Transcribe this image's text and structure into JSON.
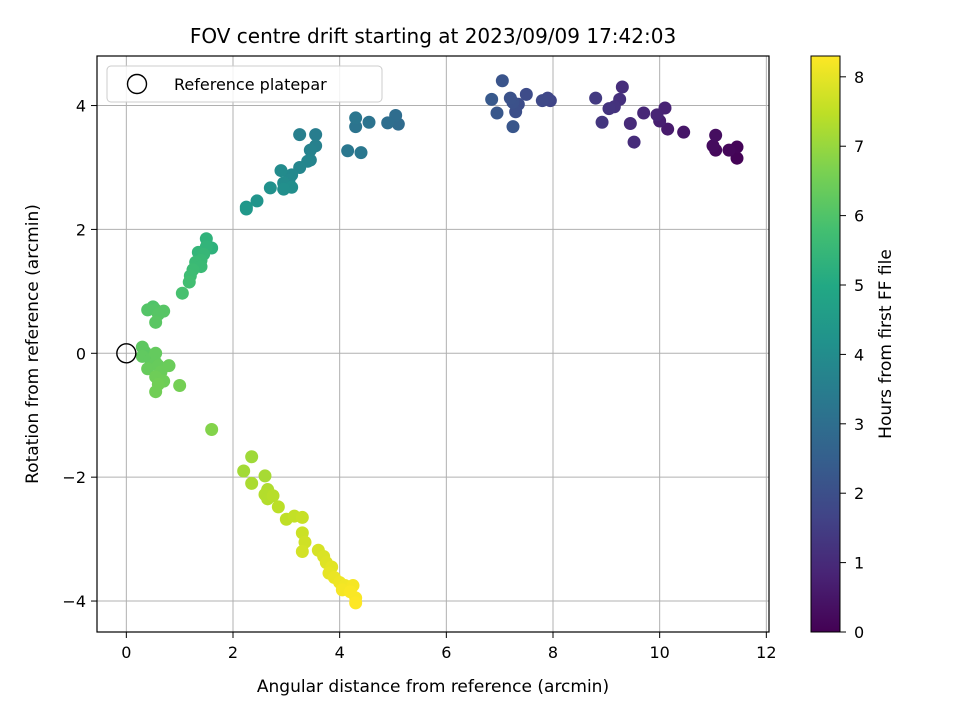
{
  "chart_data": {
    "type": "scatter",
    "title": "FOV centre drift starting at 2023/09/09 17:42:03",
    "xlabel": "Angular distance from reference (arcmin)",
    "ylabel": "Rotation from reference (arcmin)",
    "xlim": [
      -0.55,
      12.05
    ],
    "ylim": [
      -4.5,
      4.8
    ],
    "xticks": [
      "0",
      "2",
      "4",
      "6",
      "8",
      "10",
      "12"
    ],
    "yticks": [
      "−4",
      "−2",
      "0",
      "2",
      "4"
    ],
    "grid": true,
    "legend": {
      "placement": "top-left",
      "entries": [
        "Reference platepar"
      ]
    },
    "reference_point": {
      "x": 0,
      "y": 0
    },
    "colorbar": {
      "label": "Hours from first FF file",
      "colormap": "viridis",
      "range": [
        0,
        8.3
      ],
      "ticks": [
        "0",
        "1",
        "2",
        "3",
        "4",
        "5",
        "6",
        "7",
        "8"
      ]
    },
    "points": [
      {
        "x": 11.45,
        "y": 3.15,
        "c": 0.05
      },
      {
        "x": 11.45,
        "y": 3.33,
        "c": 0.1
      },
      {
        "x": 11.3,
        "y": 3.28,
        "c": 0.15
      },
      {
        "x": 11.05,
        "y": 3.28,
        "c": 0.2
      },
      {
        "x": 11.0,
        "y": 3.35,
        "c": 0.25
      },
      {
        "x": 11.05,
        "y": 3.52,
        "c": 0.3
      },
      {
        "x": 10.45,
        "y": 3.57,
        "c": 0.5
      },
      {
        "x": 10.15,
        "y": 3.62,
        "c": 0.6
      },
      {
        "x": 10.0,
        "y": 3.75,
        "c": 0.7
      },
      {
        "x": 10.1,
        "y": 3.96,
        "c": 0.8
      },
      {
        "x": 9.95,
        "y": 3.85,
        "c": 0.85
      },
      {
        "x": 9.7,
        "y": 3.88,
        "c": 0.9
      },
      {
        "x": 9.45,
        "y": 3.71,
        "c": 1.0
      },
      {
        "x": 9.52,
        "y": 3.41,
        "c": 1.05
      },
      {
        "x": 9.3,
        "y": 4.3,
        "c": 1.1
      },
      {
        "x": 9.25,
        "y": 4.1,
        "c": 1.15
      },
      {
        "x": 9.15,
        "y": 3.98,
        "c": 1.2
      },
      {
        "x": 9.05,
        "y": 3.95,
        "c": 1.25
      },
      {
        "x": 8.92,
        "y": 3.73,
        "c": 1.3
      },
      {
        "x": 8.8,
        "y": 4.12,
        "c": 1.4
      },
      {
        "x": 7.95,
        "y": 4.08,
        "c": 1.7
      },
      {
        "x": 7.9,
        "y": 4.12,
        "c": 1.75
      },
      {
        "x": 7.8,
        "y": 4.08,
        "c": 1.8
      },
      {
        "x": 7.5,
        "y": 4.18,
        "c": 1.9
      },
      {
        "x": 7.35,
        "y": 4.02,
        "c": 1.95
      },
      {
        "x": 7.3,
        "y": 3.9,
        "c": 2.0
      },
      {
        "x": 7.25,
        "y": 4.05,
        "c": 2.05
      },
      {
        "x": 7.2,
        "y": 4.12,
        "c": 2.1
      },
      {
        "x": 7.05,
        "y": 4.4,
        "c": 2.15
      },
      {
        "x": 7.25,
        "y": 3.66,
        "c": 2.2
      },
      {
        "x": 6.95,
        "y": 3.88,
        "c": 2.25
      },
      {
        "x": 6.85,
        "y": 4.1,
        "c": 2.3
      },
      {
        "x": 5.1,
        "y": 3.7,
        "c": 2.9
      },
      {
        "x": 5.05,
        "y": 3.84,
        "c": 2.95
      },
      {
        "x": 4.9,
        "y": 3.72,
        "c": 3.0
      },
      {
        "x": 4.55,
        "y": 3.73,
        "c": 3.15
      },
      {
        "x": 4.3,
        "y": 3.66,
        "c": 3.2
      },
      {
        "x": 4.3,
        "y": 3.8,
        "c": 3.25
      },
      {
        "x": 4.15,
        "y": 3.27,
        "c": 3.3
      },
      {
        "x": 4.4,
        "y": 3.24,
        "c": 3.3
      },
      {
        "x": 3.55,
        "y": 3.53,
        "c": 3.5
      },
      {
        "x": 3.25,
        "y": 3.53,
        "c": 3.55
      },
      {
        "x": 3.55,
        "y": 3.35,
        "c": 3.6
      },
      {
        "x": 3.45,
        "y": 3.28,
        "c": 3.65
      },
      {
        "x": 3.45,
        "y": 3.12,
        "c": 3.7
      },
      {
        "x": 3.4,
        "y": 3.1,
        "c": 3.75
      },
      {
        "x": 3.25,
        "y": 3.0,
        "c": 3.8
      },
      {
        "x": 3.1,
        "y": 2.88,
        "c": 3.85
      },
      {
        "x": 3.05,
        "y": 2.8,
        "c": 3.9
      },
      {
        "x": 2.9,
        "y": 2.95,
        "c": 3.95
      },
      {
        "x": 2.95,
        "y": 2.75,
        "c": 4.0
      },
      {
        "x": 3.1,
        "y": 2.68,
        "c": 4.05
      },
      {
        "x": 2.95,
        "y": 2.65,
        "c": 4.1
      },
      {
        "x": 2.7,
        "y": 2.67,
        "c": 4.15
      },
      {
        "x": 2.45,
        "y": 2.46,
        "c": 4.25
      },
      {
        "x": 2.25,
        "y": 2.36,
        "c": 4.35
      },
      {
        "x": 2.25,
        "y": 2.33,
        "c": 4.4
      },
      {
        "x": 1.6,
        "y": 1.7,
        "c": 5.3
      },
      {
        "x": 1.5,
        "y": 1.85,
        "c": 5.35
      },
      {
        "x": 1.5,
        "y": 1.72,
        "c": 5.4
      },
      {
        "x": 1.35,
        "y": 1.63,
        "c": 5.45
      },
      {
        "x": 1.45,
        "y": 1.6,
        "c": 5.5
      },
      {
        "x": 1.4,
        "y": 1.5,
        "c": 5.55
      },
      {
        "x": 1.3,
        "y": 1.47,
        "c": 5.6
      },
      {
        "x": 1.4,
        "y": 1.4,
        "c": 5.6
      },
      {
        "x": 1.25,
        "y": 1.35,
        "c": 5.65
      },
      {
        "x": 1.2,
        "y": 1.25,
        "c": 5.7
      },
      {
        "x": 1.18,
        "y": 1.15,
        "c": 5.75
      },
      {
        "x": 1.05,
        "y": 0.97,
        "c": 5.85
      },
      {
        "x": 0.5,
        "y": 0.75,
        "c": 6.0
      },
      {
        "x": 0.4,
        "y": 0.7,
        "c": 6.05
      },
      {
        "x": 0.55,
        "y": 0.7,
        "c": 6.05
      },
      {
        "x": 0.7,
        "y": 0.68,
        "c": 6.1
      },
      {
        "x": 0.6,
        "y": 0.63,
        "c": 6.1
      },
      {
        "x": 0.55,
        "y": 0.5,
        "c": 6.15
      },
      {
        "x": 0.3,
        "y": 0.1,
        "c": 6.2
      },
      {
        "x": 0.35,
        "y": 0.02,
        "c": 6.2
      },
      {
        "x": 0.3,
        "y": -0.05,
        "c": 6.25
      },
      {
        "x": 0.45,
        "y": -0.1,
        "c": 6.25
      },
      {
        "x": 0.55,
        "y": 0.0,
        "c": 6.3
      },
      {
        "x": 0.55,
        "y": -0.15,
        "c": 6.3
      },
      {
        "x": 0.4,
        "y": -0.25,
        "c": 6.35
      },
      {
        "x": 0.6,
        "y": -0.2,
        "c": 6.35
      },
      {
        "x": 0.8,
        "y": -0.2,
        "c": 6.4
      },
      {
        "x": 0.65,
        "y": -0.3,
        "c": 6.4
      },
      {
        "x": 0.55,
        "y": -0.38,
        "c": 6.45
      },
      {
        "x": 0.7,
        "y": -0.45,
        "c": 6.45
      },
      {
        "x": 0.6,
        "y": -0.5,
        "c": 6.5
      },
      {
        "x": 0.55,
        "y": -0.62,
        "c": 6.5
      },
      {
        "x": 1.0,
        "y": -0.52,
        "c": 6.55
      },
      {
        "x": 1.6,
        "y": -1.23,
        "c": 6.75
      },
      {
        "x": 2.35,
        "y": -1.67,
        "c": 7.1
      },
      {
        "x": 2.2,
        "y": -1.9,
        "c": 7.15
      },
      {
        "x": 2.6,
        "y": -1.98,
        "c": 7.2
      },
      {
        "x": 2.35,
        "y": -2.1,
        "c": 7.25
      },
      {
        "x": 2.65,
        "y": -2.2,
        "c": 7.3
      },
      {
        "x": 2.6,
        "y": -2.28,
        "c": 7.35
      },
      {
        "x": 2.65,
        "y": -2.35,
        "c": 7.35
      },
      {
        "x": 2.75,
        "y": -2.3,
        "c": 7.4
      },
      {
        "x": 2.85,
        "y": -2.48,
        "c": 7.45
      },
      {
        "x": 3.0,
        "y": -2.68,
        "c": 7.5
      },
      {
        "x": 3.15,
        "y": -2.63,
        "c": 7.55
      },
      {
        "x": 3.3,
        "y": -2.65,
        "c": 7.6
      },
      {
        "x": 3.3,
        "y": -2.9,
        "c": 7.65
      },
      {
        "x": 3.35,
        "y": -3.05,
        "c": 7.7
      },
      {
        "x": 3.3,
        "y": -3.2,
        "c": 7.75
      },
      {
        "x": 3.6,
        "y": -3.18,
        "c": 7.8
      },
      {
        "x": 3.7,
        "y": -3.28,
        "c": 7.85
      },
      {
        "x": 3.75,
        "y": -3.38,
        "c": 7.9
      },
      {
        "x": 3.85,
        "y": -3.45,
        "c": 7.95
      },
      {
        "x": 3.8,
        "y": -3.55,
        "c": 8.0
      },
      {
        "x": 3.9,
        "y": -3.62,
        "c": 8.05
      },
      {
        "x": 4.0,
        "y": -3.7,
        "c": 8.1
      },
      {
        "x": 4.1,
        "y": -3.75,
        "c": 8.15
      },
      {
        "x": 4.25,
        "y": -3.75,
        "c": 8.2
      },
      {
        "x": 4.05,
        "y": -3.82,
        "c": 8.2
      },
      {
        "x": 4.2,
        "y": -3.85,
        "c": 8.25
      },
      {
        "x": 4.3,
        "y": -3.95,
        "c": 8.25
      },
      {
        "x": 4.3,
        "y": -4.03,
        "c": 8.3
      }
    ]
  }
}
